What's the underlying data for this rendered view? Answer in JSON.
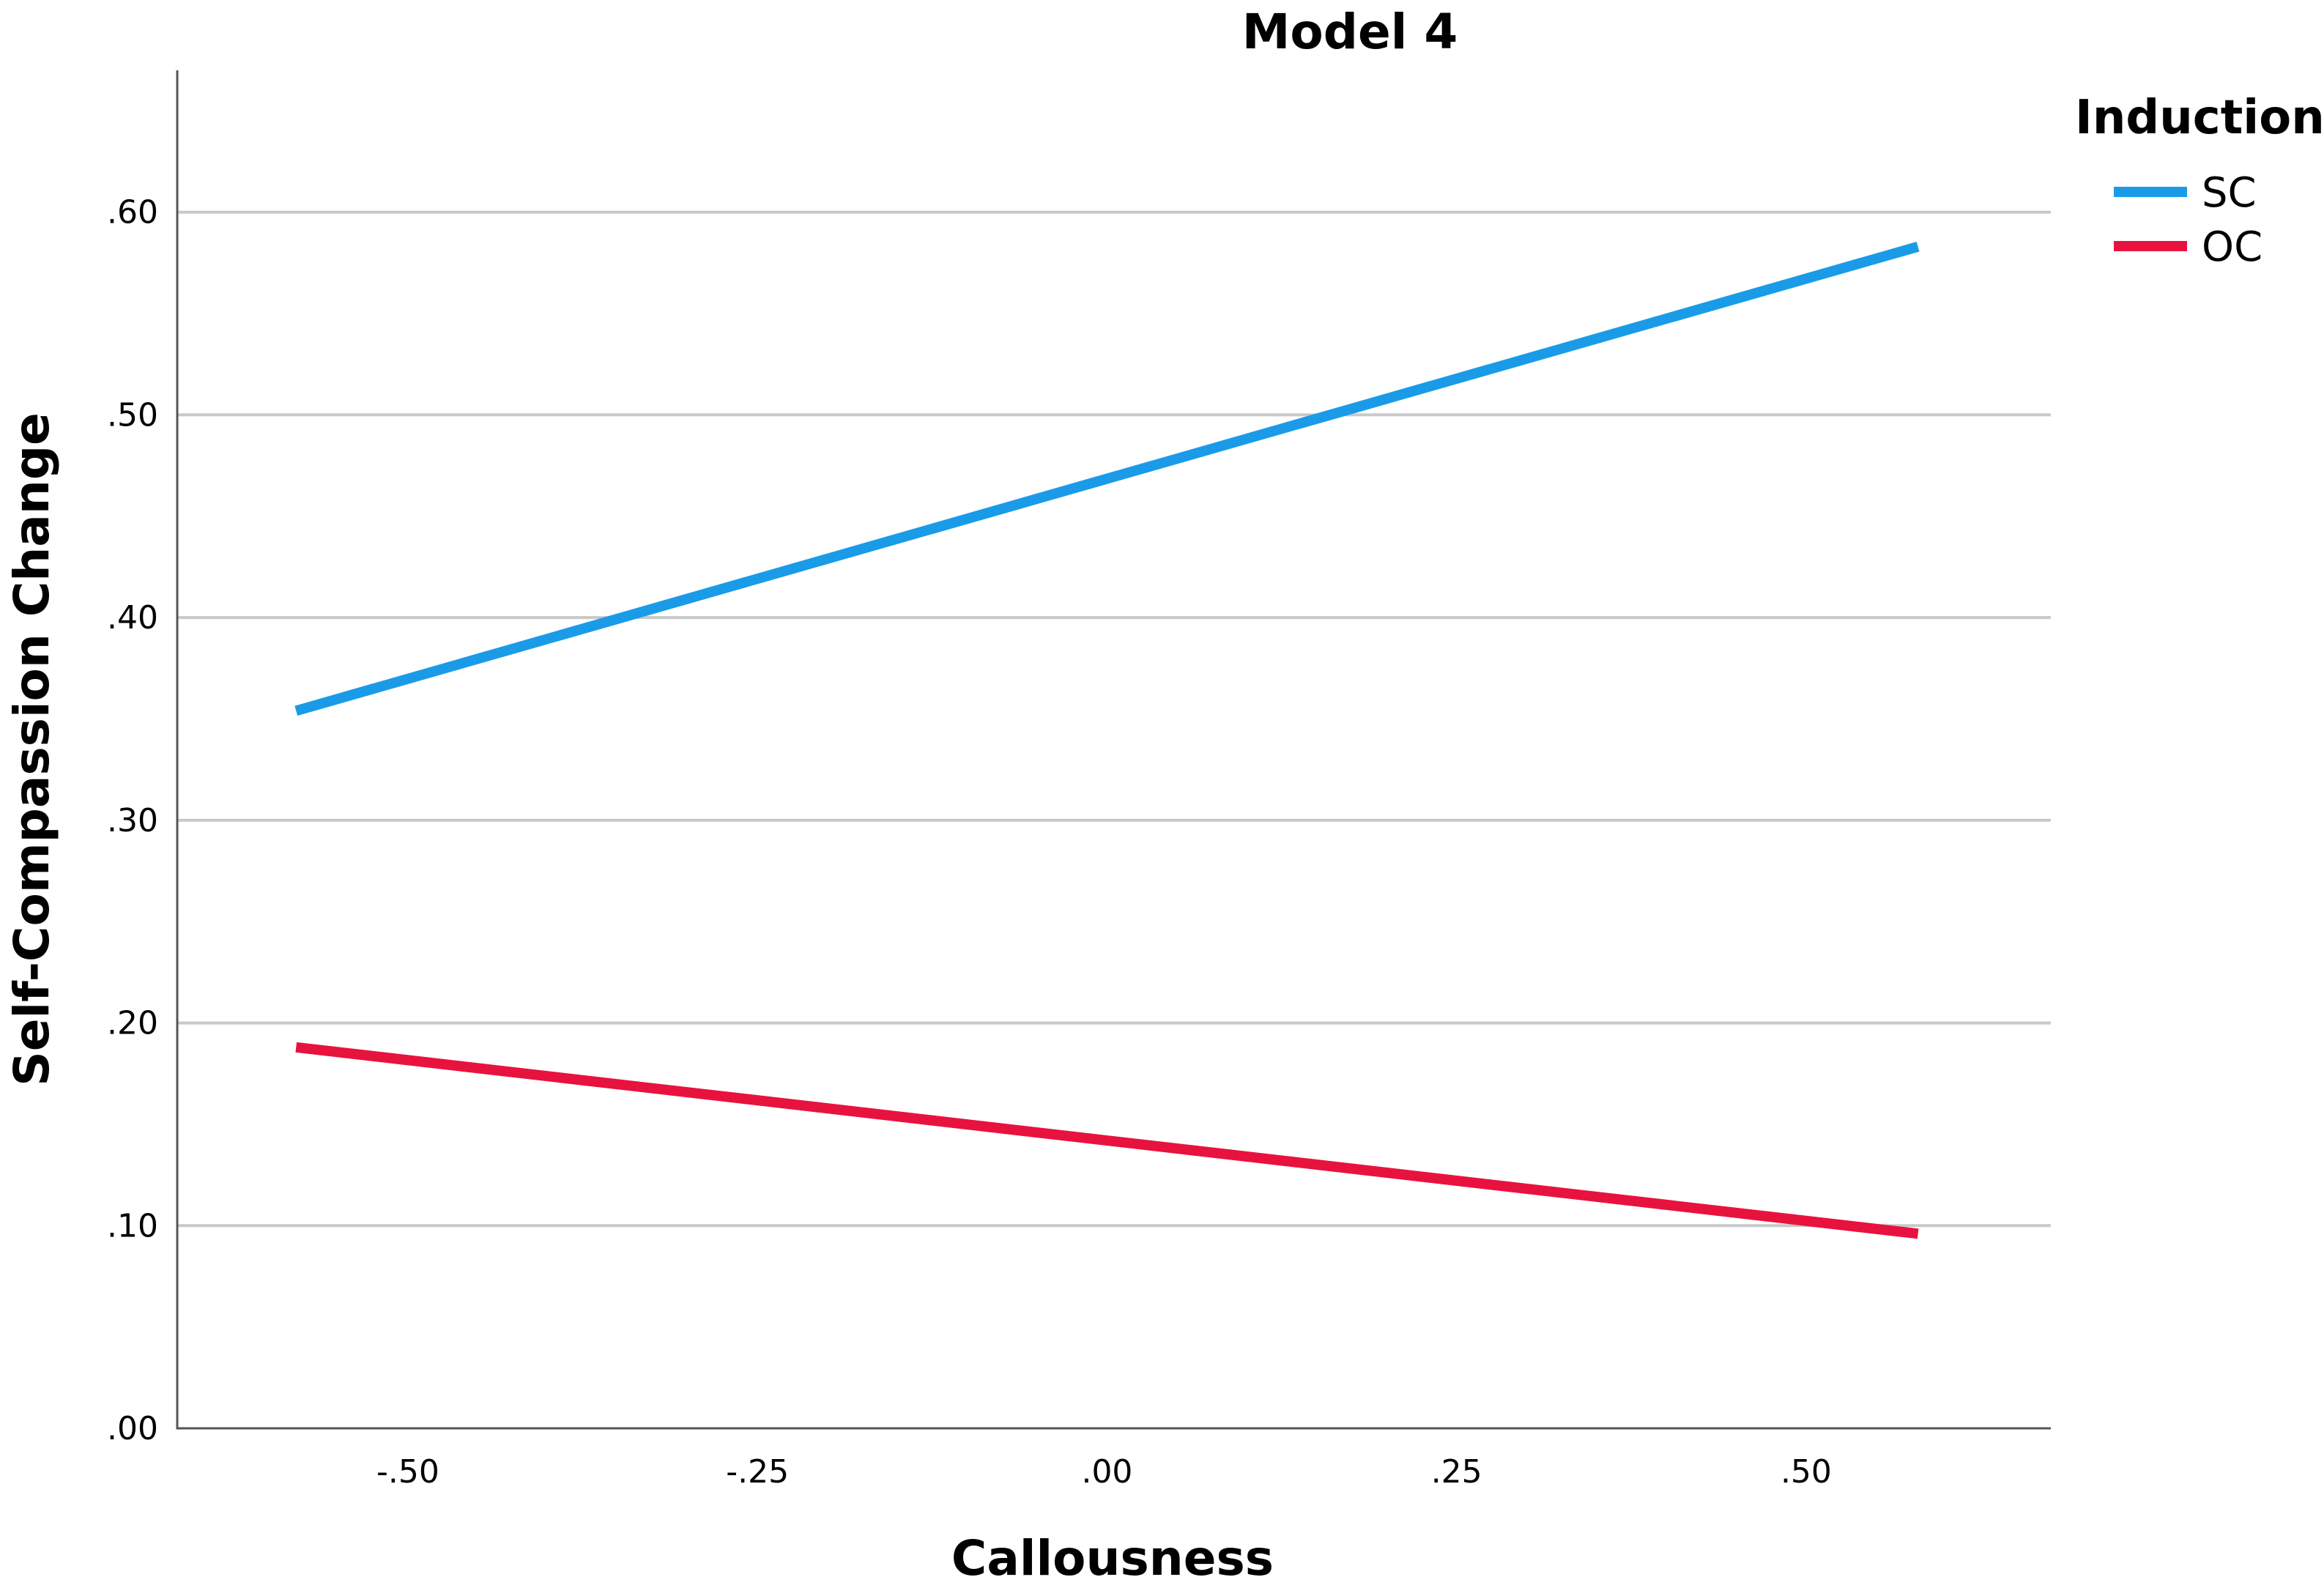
{
  "chart_data": {
    "type": "line",
    "title": "Model 4",
    "xlabel": "Callousness",
    "ylabel": "Self-Compassion Change",
    "xlim": [
      -0.665,
      0.675
    ],
    "ylim": [
      0,
      0.67
    ],
    "x_ticks": [
      -0.5,
      -0.25,
      0,
      0.25,
      0.5
    ],
    "x_tick_labels": [
      "-.50",
      "-.25",
      ".00",
      ".25",
      ".50"
    ],
    "y_ticks": [
      0,
      0.1,
      0.2,
      0.3,
      0.4,
      0.5,
      0.6
    ],
    "y_tick_labels": [
      ".00",
      ".10",
      ".20",
      ".30",
      ".40",
      ".50",
      ".60"
    ],
    "grid": "horizontal",
    "legend": {
      "title": "Induction",
      "position": "top-right"
    },
    "series": [
      {
        "name": "SC",
        "color": "#1a9be8",
        "x": [
          -0.58,
          0.58
        ],
        "y": [
          0.354,
          0.583
        ]
      },
      {
        "name": "OC",
        "color": "#e8123f",
        "x": [
          -0.58,
          0.58
        ],
        "y": [
          0.188,
          0.096
        ]
      }
    ]
  }
}
